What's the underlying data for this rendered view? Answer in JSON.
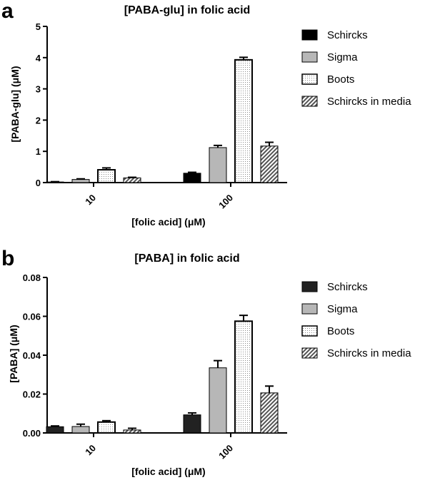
{
  "chart_data": [
    {
      "panel": "a",
      "type": "bar",
      "title": "[PABA-glu] in folic acid",
      "xlabel": "[folic acid] (μM)",
      "ylabel": "[PABA-glu] (μM)",
      "ylim": [
        0,
        5
      ],
      "yticks": [
        "0",
        "1",
        "2",
        "3",
        "4",
        "5"
      ],
      "categories": [
        "10",
        "100"
      ],
      "legend_position": "right",
      "series": [
        {
          "name": "Schircks",
          "values": [
            0.02,
            0.3
          ],
          "errors": [
            0.01,
            0.03
          ]
        },
        {
          "name": "Sigma",
          "values": [
            0.1,
            1.12
          ],
          "errors": [
            0.02,
            0.07
          ]
        },
        {
          "name": "Boots",
          "values": [
            0.41,
            3.93
          ],
          "errors": [
            0.06,
            0.08
          ]
        },
        {
          "name": "Schircks in media",
          "values": [
            0.15,
            1.17
          ],
          "errors": [
            0.02,
            0.12
          ]
        }
      ]
    },
    {
      "panel": "b",
      "type": "bar",
      "title": "[PABA] in folic acid",
      "xlabel": "[folic acid] (μM)",
      "ylabel": "[PABA]  (μM)",
      "ylim": [
        0,
        0.08
      ],
      "yticks": [
        "0.00",
        "0.02",
        "0.04",
        "0.06",
        "0.08"
      ],
      "categories": [
        "10",
        "100"
      ],
      "legend_position": "right",
      "series": [
        {
          "name": "Schircks",
          "values": [
            0.0032,
            0.0093
          ],
          "errors": [
            0.0004,
            0.001
          ]
        },
        {
          "name": "Sigma",
          "values": [
            0.0033,
            0.0335
          ],
          "errors": [
            0.0012,
            0.0037
          ]
        },
        {
          "name": "Boots",
          "values": [
            0.0056,
            0.0575
          ],
          "errors": [
            0.0007,
            0.003
          ]
        },
        {
          "name": "Schircks in media",
          "values": [
            0.0015,
            0.0206
          ],
          "errors": [
            0.0009,
            0.0035
          ]
        }
      ]
    }
  ]
}
